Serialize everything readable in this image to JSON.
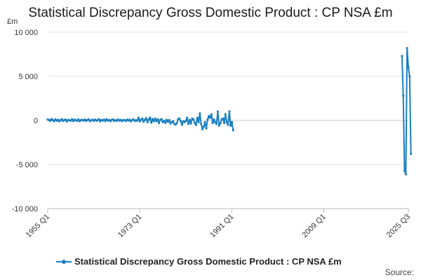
{
  "chart_data": {
    "type": "line",
    "title": "Statistical Discrepancy Gross Domestic Product : CP NSA £m",
    "ylabel": "£m",
    "ylim": [
      -10000,
      10000
    ],
    "yticks": [
      10000,
      5000,
      0,
      -5000,
      -10000
    ],
    "ytick_labels": [
      "10 000",
      "5 000",
      "0",
      "-5 000",
      "-10 000"
    ],
    "x_start": "1955 Q1",
    "x_end": "2025 Q3",
    "xticks": [
      "1955 Q1",
      "1973 Q1",
      "1991 Q1",
      "2009 Q1",
      "2025 Q3"
    ],
    "series": [
      {
        "name": "Statistical Discrepancy Gross Domestic Product : CP NSA £m",
        "color": "#1a7fc1",
        "segments": [
          {
            "start": "1955 Q1",
            "values": [
              100,
              50,
              -50,
              150,
              30,
              -80,
              120,
              -40,
              60,
              -100,
              20,
              130,
              -60,
              40,
              90,
              -120,
              50,
              10,
              -30,
              140,
              -70,
              80,
              20,
              -50,
              110,
              -90,
              30,
              60,
              -20,
              100,
              -60,
              40,
              120,
              -80,
              10,
              70,
              -40,
              90,
              -30,
              20,
              150,
              -100,
              50,
              -20,
              80,
              -60,
              130,
              -10,
              40,
              -90,
              60,
              120,
              -70,
              30,
              -40,
              100,
              -20,
              60,
              -80,
              40,
              20,
              -50,
              90,
              -30,
              70,
              -100,
              40,
              110,
              -60,
              20,
              -40,
              300,
              -100,
              80,
              200,
              -150,
              60,
              250,
              -200,
              100,
              320,
              -250,
              150,
              -100,
              200,
              -80,
              120,
              -300,
              50,
              150,
              -200,
              -50,
              -280,
              60,
              -150,
              40,
              -350,
              -200,
              -100,
              -400,
              -480,
              -300,
              150,
              200,
              -100,
              -500,
              -100,
              -200,
              -50,
              300,
              -400,
              50,
              -350,
              200,
              100,
              -300,
              -500,
              300,
              -200,
              800,
              -400,
              -1000,
              -700,
              -200,
              -900,
              100,
              500,
              300,
              700,
              -300,
              100,
              -200,
              -400,
              1000,
              -600,
              -300,
              100,
              200,
              -300,
              700,
              -200,
              -500,
              1000,
              -600,
              -200,
              -1100
            ]
          },
          {
            "start": "2024 Q2",
            "values": [
              7300,
              2800,
              -5700,
              -6100,
              8200,
              6000,
              5000,
              -3800
            ]
          }
        ]
      }
    ],
    "legend_label": "Statistical Discrepancy Gross Domestic Product : CP NSA £m",
    "source_label": "Source:"
  }
}
